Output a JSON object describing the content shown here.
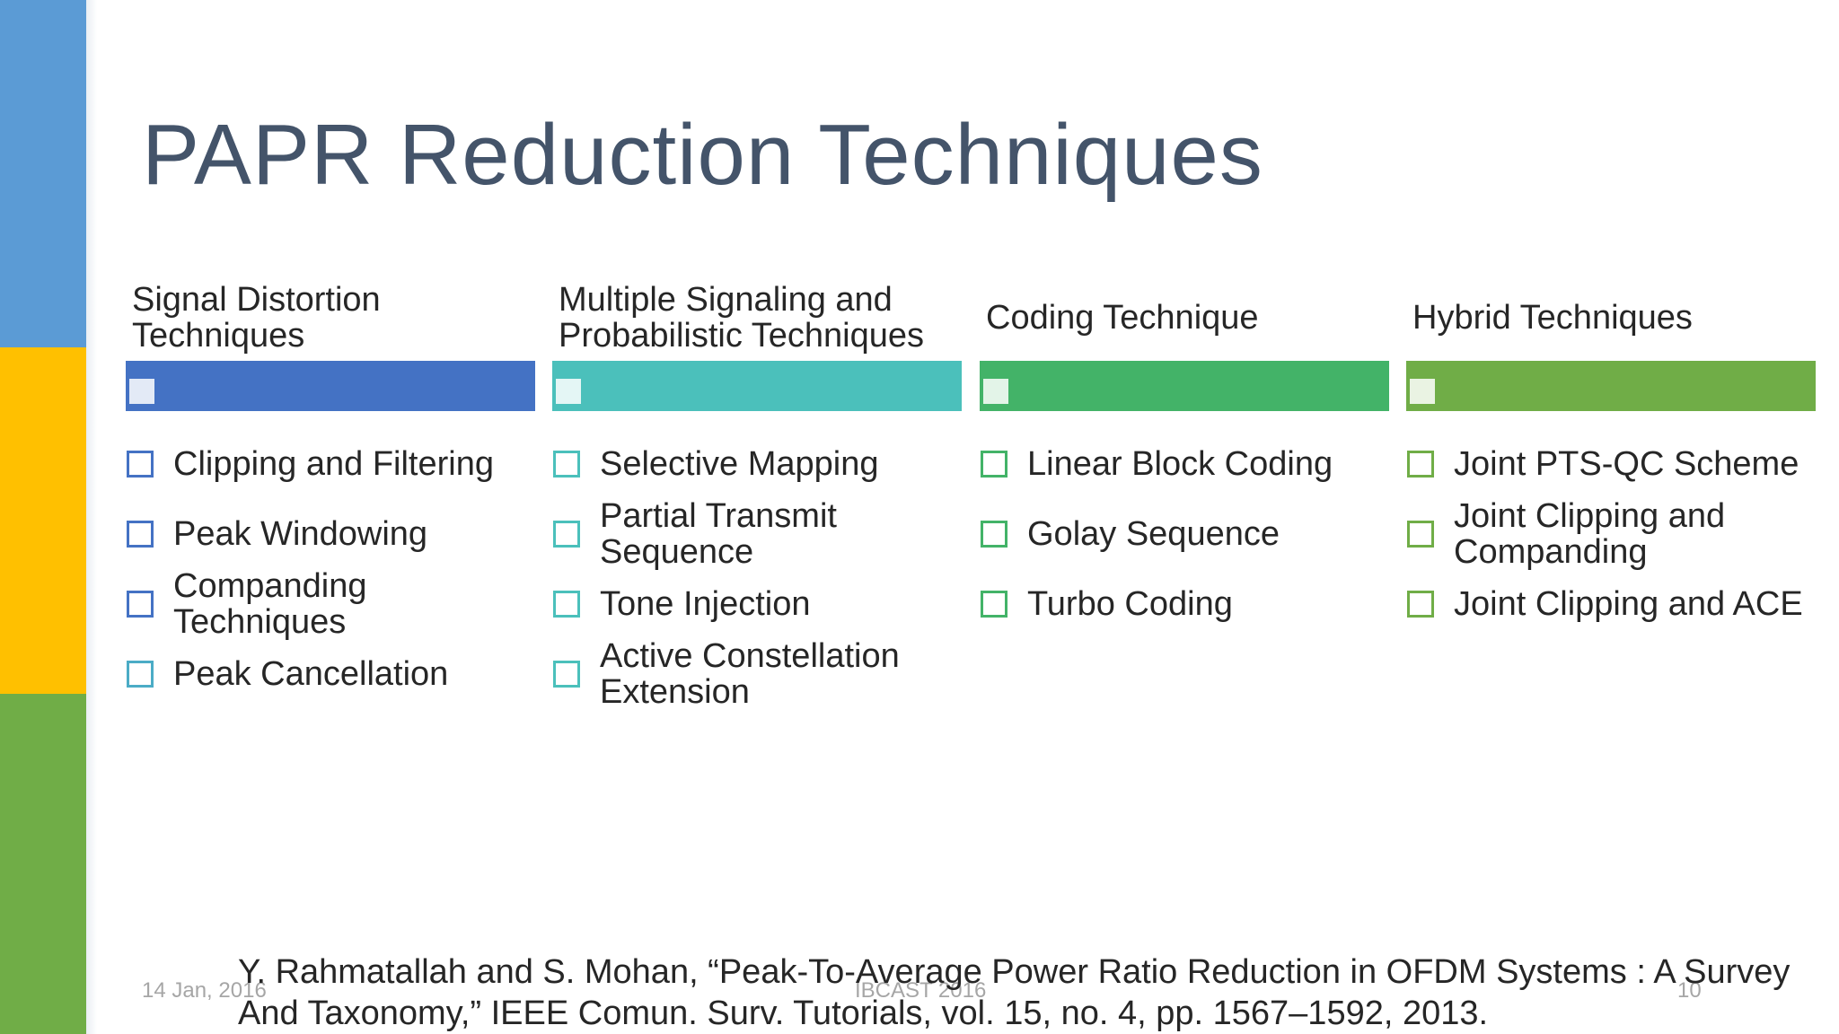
{
  "slide": {
    "title": "PAPR Reduction Techniques",
    "columns": [
      {
        "header": "Signal Distortion Techniques",
        "items": [
          "Clipping and Filtering",
          "Peak Windowing",
          "Companding Techniques",
          "Peak Cancellation"
        ]
      },
      {
        "header": "Multiple Signaling and Probabilistic Techniques",
        "items": [
          "Selective Mapping",
          "Partial Transmit Sequence",
          "Tone Injection",
          "Active Constellation Extension"
        ]
      },
      {
        "header": "Coding Technique",
        "items": [
          "Linear Block Coding",
          "Golay Sequence",
          "Turbo Coding"
        ]
      },
      {
        "header": "Hybrid Techniques",
        "items": [
          "Joint PTS-QC Scheme",
          "Joint Clipping and Companding",
          "Joint Clipping and ACE"
        ]
      }
    ],
    "reference": "Y. Rahmatallah and S. Mohan, “Peak-To-Average Power Ratio Reduction in OFDM Systems : A Survey And Taxonomy,” IEEE Comun. Surv. Tutorials, vol. 15, no. 4, pp. 1567–1592, 2013.",
    "footer": {
      "date": "14 Jan, 2016",
      "event": "IBCAST 2016",
      "page": "10"
    }
  },
  "colors": {
    "strip_blue": "#5b9bd5",
    "strip_gold": "#ffc000",
    "strip_green": "#70ad47",
    "title": "#44546a",
    "col1": "#4472c4",
    "col2": "#4bc0bb",
    "col3": "#43b368",
    "col4": "#70ad47"
  },
  "icons": {
    "bullet": "checkbox-outline-icon"
  }
}
